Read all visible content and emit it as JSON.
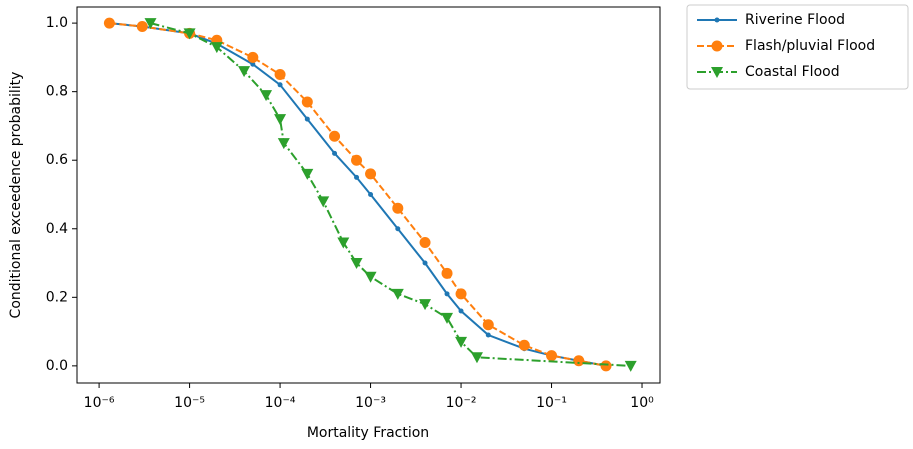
{
  "chart_data": {
    "type": "line",
    "xlabel": "Mortality Fraction",
    "ylabel": "Conditional exceedence probability",
    "xscale": "log",
    "xlim": [
      5.7e-07,
      1.58
    ],
    "ylim": [
      -0.05,
      1.047
    ],
    "xticks": [
      {
        "value": 1e-06,
        "label": "10⁻⁶"
      },
      {
        "value": 1e-05,
        "label": "10⁻⁵"
      },
      {
        "value": 0.0001,
        "label": "10⁻⁴"
      },
      {
        "value": 0.001,
        "label": "10⁻³"
      },
      {
        "value": 0.01,
        "label": "10⁻²"
      },
      {
        "value": 0.1,
        "label": "10⁻¹"
      },
      {
        "value": 1,
        "label": "10⁰"
      }
    ],
    "yticks": [
      {
        "value": 0,
        "label": "0.0"
      },
      {
        "value": 0.2,
        "label": "0.2"
      },
      {
        "value": 0.4,
        "label": "0.4"
      },
      {
        "value": 0.6,
        "label": "0.6"
      },
      {
        "value": 0.8,
        "label": "0.8"
      },
      {
        "value": 1,
        "label": "1.0"
      }
    ],
    "legend": "outside upper right",
    "series": [
      {
        "name": "Riverine Flood",
        "color": "#1f77b4",
        "linestyle": "solid",
        "marker": "dot",
        "x": [
          1.3e-06,
          3e-06,
          1e-05,
          2e-05,
          5e-05,
          0.0001,
          0.0002,
          0.0004,
          0.0007,
          0.001,
          0.002,
          0.004,
          0.007,
          0.01,
          0.02,
          0.05,
          0.1,
          0.2,
          0.4
        ],
        "values": [
          1.0,
          0.99,
          0.97,
          0.94,
          0.88,
          0.82,
          0.72,
          0.62,
          0.55,
          0.5,
          0.4,
          0.3,
          0.21,
          0.16,
          0.09,
          0.05,
          0.03,
          0.015,
          0.0
        ]
      },
      {
        "name": "Flash/pluvial Flood",
        "color": "#ff7f0e",
        "linestyle": "dashed",
        "marker": "circle",
        "x": [
          1.3e-06,
          3e-06,
          1e-05,
          2e-05,
          5e-05,
          0.0001,
          0.0002,
          0.0004,
          0.0007,
          0.001,
          0.002,
          0.004,
          0.007,
          0.01,
          0.02,
          0.05,
          0.1,
          0.2,
          0.4
        ],
        "values": [
          1.0,
          0.99,
          0.97,
          0.95,
          0.9,
          0.85,
          0.77,
          0.67,
          0.6,
          0.56,
          0.46,
          0.36,
          0.27,
          0.21,
          0.12,
          0.06,
          0.03,
          0.015,
          0.0
        ]
      },
      {
        "name": "Coastal Flood",
        "color": "#2ca02c",
        "linestyle": "dashdot",
        "marker": "triangle-down",
        "x": [
          3.7e-06,
          1e-05,
          2e-05,
          4e-05,
          7e-05,
          0.0001,
          0.00011,
          0.0002,
          0.0003,
          0.0005,
          0.0007,
          0.001,
          0.002,
          0.004,
          0.007,
          0.01,
          0.015,
          0.75
        ],
        "values": [
          1.0,
          0.97,
          0.93,
          0.86,
          0.79,
          0.72,
          0.65,
          0.56,
          0.48,
          0.36,
          0.3,
          0.26,
          0.21,
          0.18,
          0.14,
          0.07,
          0.025,
          0.0
        ]
      }
    ]
  }
}
